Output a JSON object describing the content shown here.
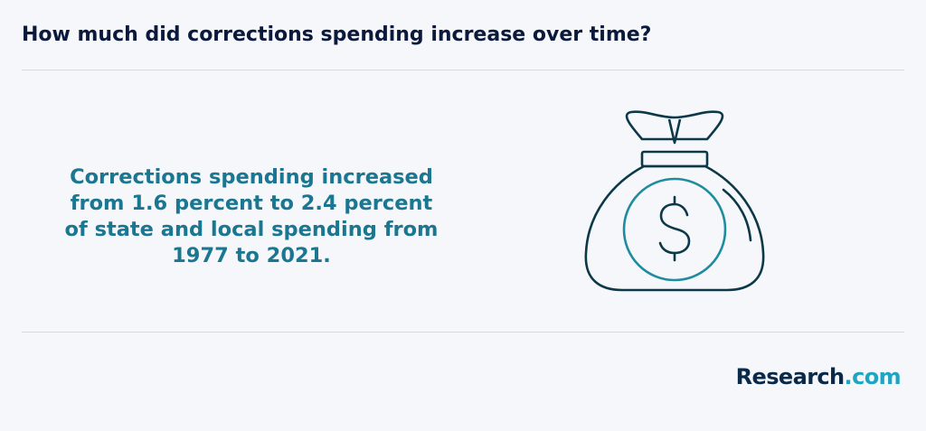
{
  "header": {
    "title": "How much did corrections spending increase over time?"
  },
  "main": {
    "statement": "Corrections spending increased from 1.6 percent to 2.4 percent of state and local spending from 1977 to 2021.",
    "icon": "money-bag-icon",
    "icon_symbol": "$"
  },
  "footer": {
    "brand_main": "Research",
    "brand_domain": ".com"
  },
  "colors": {
    "background": "#f5f7fa",
    "title": "#0b1a3c",
    "statement": "#1a7691",
    "icon_outline": "#0c3848",
    "icon_accent": "#1e8c9e",
    "brand_dark": "#0b2a4a",
    "brand_accent": "#1ea5c4"
  }
}
